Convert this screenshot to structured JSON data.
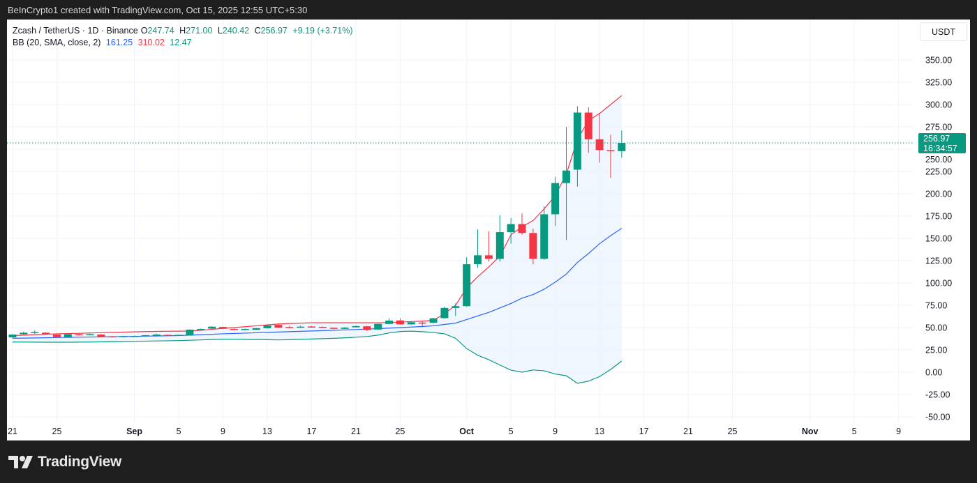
{
  "header_note": "BeInCrypto1 created with TradingView.com, Oct 15, 2025 12:55 UTC+5:30",
  "legend": {
    "symbol": "Zcash / TetherUS · 1D · Binance",
    "open_label": "O",
    "open": "247.74",
    "high_label": "H",
    "high": "271.00",
    "low_label": "L",
    "low": "240.42",
    "close_label": "C",
    "close": "256.97",
    "change": "+9.19 (+3.71%)",
    "indicator": "BB (20, SMA, close, 2)",
    "bb_basis": "161.25",
    "bb_upper": "310.02",
    "bb_lower": "12.47"
  },
  "price_axis": {
    "unit": "USDT",
    "last_price": "256.97",
    "countdown": "16:34:57"
  },
  "footer": {
    "brand": "TradingView"
  },
  "colors": {
    "up": "#089981",
    "down": "#f23645",
    "basis": "#2962ff",
    "upper": "#f23645",
    "lower": "#089981",
    "band_fill": "#e9f2fd"
  },
  "chart_data": {
    "type": "candlestick",
    "title": "Zcash / TetherUS · 1D · Binance",
    "ylim": [
      -50,
      350
    ],
    "yticks": [
      "350.00",
      "325.00",
      "300.00",
      "275.00",
      "250.00",
      "225.00",
      "200.00",
      "175.00",
      "150.00",
      "125.00",
      "100.00",
      "75.00",
      "50.00",
      "25.00",
      "0.00",
      "-25.00",
      "-50.00"
    ],
    "ytick_values": [
      350,
      325,
      300,
      275,
      250,
      225,
      200,
      175,
      150,
      125,
      100,
      75,
      50,
      25,
      0,
      -25,
      -50
    ],
    "xlim": [
      "2025-08-21",
      "2025-11-11"
    ],
    "xticks": [
      {
        "date": "2025-08-21",
        "label": "21"
      },
      {
        "date": "2025-08-25",
        "label": "25"
      },
      {
        "date": "2025-09-01",
        "label": "Sep",
        "month": true
      },
      {
        "date": "2025-09-05",
        "label": "5"
      },
      {
        "date": "2025-09-09",
        "label": "9"
      },
      {
        "date": "2025-09-13",
        "label": "13"
      },
      {
        "date": "2025-09-17",
        "label": "17"
      },
      {
        "date": "2025-09-21",
        "label": "21"
      },
      {
        "date": "2025-09-25",
        "label": "25"
      },
      {
        "date": "2025-10-01",
        "label": "Oct",
        "month": true
      },
      {
        "date": "2025-10-05",
        "label": "5"
      },
      {
        "date": "2025-10-09",
        "label": "9"
      },
      {
        "date": "2025-10-13",
        "label": "13"
      },
      {
        "date": "2025-10-17",
        "label": "17"
      },
      {
        "date": "2025-10-21",
        "label": "21"
      },
      {
        "date": "2025-10-25",
        "label": "25"
      },
      {
        "date": "2025-11-01",
        "label": "Nov",
        "month": true
      },
      {
        "date": "2025-11-05",
        "label": "5"
      },
      {
        "date": "2025-11-09",
        "label": "9"
      }
    ],
    "start_date": "2025-08-21",
    "ohlc": [
      [
        39,
        42.5,
        38.5,
        42.2
      ],
      [
        42.5,
        45.5,
        42,
        44.2
      ],
      [
        44.3,
        46.7,
        43,
        44.8
      ],
      [
        44.3,
        44.8,
        41.8,
        42.2
      ],
      [
        42.2,
        42.6,
        39,
        39.3
      ],
      [
        39.3,
        43,
        39,
        42.7
      ],
      [
        42.6,
        43.5,
        41.2,
        42.2
      ],
      [
        42.2,
        43.3,
        41.5,
        42.6
      ],
      [
        42.2,
        42.6,
        39.3,
        39.6
      ],
      [
        40.2,
        40.6,
        39.3,
        39.6
      ],
      [
        39.6,
        40.8,
        39.2,
        40.4
      ],
      [
        39.8,
        41,
        39.4,
        40.6
      ],
      [
        40.6,
        41.8,
        40.2,
        41.4
      ],
      [
        41,
        43,
        40,
        42.2
      ],
      [
        41.8,
        42.3,
        40.8,
        41.2
      ],
      [
        41.2,
        42.2,
        40.8,
        41.8
      ],
      [
        41.2,
        48,
        41,
        47.7
      ],
      [
        47.7,
        49,
        47,
        48.4
      ],
      [
        48.8,
        51.6,
        48.2,
        51
      ],
      [
        50.7,
        51.2,
        48,
        48.6
      ],
      [
        48.4,
        49,
        47.6,
        47.8
      ],
      [
        47.6,
        48.8,
        47,
        48.4
      ],
      [
        47.5,
        49.6,
        47.2,
        49.3
      ],
      [
        49.3,
        52.8,
        49,
        52.4
      ],
      [
        53,
        54.7,
        49.5,
        49.8
      ],
      [
        50.6,
        51.8,
        49.6,
        50
      ],
      [
        50,
        52,
        49.6,
        51
      ],
      [
        51.2,
        51.8,
        50,
        50.6
      ],
      [
        50.8,
        51.4,
        49.8,
        50.2
      ],
      [
        49.8,
        50.2,
        48.2,
        48.6
      ],
      [
        48.6,
        50.6,
        48.2,
        50
      ],
      [
        50.3,
        52.2,
        50,
        51.6
      ],
      [
        51.4,
        51.8,
        46,
        47.3
      ],
      [
        47.8,
        54.4,
        47.4,
        54.1
      ],
      [
        54.1,
        60.5,
        53.6,
        57.8
      ],
      [
        58,
        60.4,
        53.2,
        53.6
      ],
      [
        53.6,
        56.6,
        53,
        56
      ],
      [
        55.6,
        58,
        52,
        55
      ],
      [
        55.5,
        61,
        54.6,
        60.4
      ],
      [
        60.6,
        73.4,
        60,
        72
      ],
      [
        72,
        77,
        63,
        74
      ],
      [
        74,
        129,
        73,
        121
      ],
      [
        121,
        160,
        117,
        131
      ],
      [
        131,
        158,
        124,
        127
      ],
      [
        127,
        176,
        124,
        157
      ],
      [
        157,
        173,
        144,
        166
      ],
      [
        166,
        178,
        154,
        156
      ],
      [
        156,
        161,
        121,
        127
      ],
      [
        127,
        186,
        126,
        177
      ],
      [
        177,
        219,
        164,
        212
      ],
      [
        212,
        275,
        148,
        226
      ],
      [
        227,
        298,
        208,
        291
      ],
      [
        291,
        297,
        246,
        261
      ],
      [
        261,
        290,
        235,
        249
      ],
      [
        249,
        266,
        218,
        248
      ],
      [
        247.74,
        271,
        240.42,
        256.97
      ]
    ],
    "bb_upper": [
      41,
      41.5,
      42,
      42.5,
      43,
      43.3,
      43.6,
      44,
      44.3,
      44.6,
      44.9,
      45.2,
      45.5,
      45.7,
      45.9,
      46,
      46.2,
      47,
      48,
      49.2,
      50,
      51,
      52,
      53,
      54,
      54.6,
      55,
      55.4,
      55.4,
      55.4,
      55.4,
      55.4,
      55.4,
      55.4,
      55.6,
      56.2,
      56.8,
      57.2,
      58,
      65.6,
      75,
      94.5,
      107,
      118,
      130,
      154,
      163,
      170,
      183,
      198,
      222,
      261,
      282,
      290,
      300,
      310.02
    ],
    "bb_basis": [
      38,
      38.2,
      38.4,
      38.6,
      38.8,
      39,
      39.2,
      39.4,
      39.6,
      39.8,
      40,
      40.2,
      40.4,
      40.6,
      40.8,
      41,
      41.5,
      42,
      42.5,
      43,
      43.4,
      43.8,
      44.2,
      44.6,
      45,
      45.4,
      45.8,
      46.2,
      46.6,
      47,
      47.4,
      47.8,
      48.3,
      48.8,
      49.4,
      50,
      50.6,
      51.2,
      52,
      53.5,
      55,
      59,
      63,
      67,
      72,
      77,
      83,
      87,
      93,
      101,
      110,
      123,
      133,
      144,
      153,
      161.25
    ],
    "bb_lower": [
      33.8,
      33.8,
      33.7,
      33.6,
      33.6,
      33.6,
      33.7,
      33.8,
      34,
      34.2,
      34.4,
      34.6,
      34.8,
      35,
      35.2,
      35.4,
      35.8,
      36.2,
      36.6,
      37,
      37,
      36.8,
      36.6,
      36.4,
      36.2,
      36.4,
      36.8,
      37.2,
      37.6,
      38,
      38.5,
      39.2,
      40,
      41.5,
      44,
      45.6,
      46,
      45.4,
      44.5,
      43,
      38,
      26.5,
      19,
      14,
      8,
      2.3,
      0,
      2.5,
      1.5,
      -2,
      -4,
      -12.5,
      -10,
      -5,
      3,
      12.47
    ],
    "last_price": 256.97,
    "grid": true
  }
}
